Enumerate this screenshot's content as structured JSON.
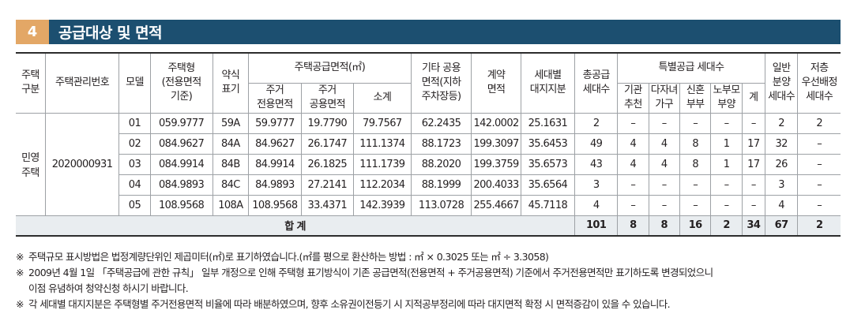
{
  "section": {
    "number": "4",
    "title": "공급대상 및 면적"
  },
  "headers": {
    "type": [
      "주택",
      "구분"
    ],
    "mgmt_no": [
      "주택관리번호"
    ],
    "model": [
      "모델"
    ],
    "house_type": [
      "주택형",
      "(전용면적",
      "기준)"
    ],
    "abbr": [
      "약식",
      "표기"
    ],
    "supply_area": "주택공급면적(㎡)",
    "exclusive": [
      "주거",
      "전용면적"
    ],
    "common": [
      "주거",
      "공용면적"
    ],
    "subtotal": [
      "소계"
    ],
    "other_common": [
      "기타 공용",
      "면적(지하",
      "주차장등)"
    ],
    "contract": [
      "계약",
      "면적"
    ],
    "land": [
      "세대별",
      "대지지분"
    ],
    "total_supply": [
      "총공급",
      "세대수"
    ],
    "special": "특별공급 세대수",
    "institution": [
      "기관",
      "추천"
    ],
    "multichild": [
      "다자녀",
      "가구"
    ],
    "newlywed": [
      "신혼",
      "부부"
    ],
    "elderly": [
      "노부모",
      "부양"
    ],
    "sp_total": [
      "계"
    ],
    "general": [
      "일반",
      "분양",
      "세대수"
    ],
    "lowest": [
      "저층",
      "우선배정",
      "세대수"
    ]
  },
  "type_label": [
    "민영",
    "주택"
  ],
  "mgmt_no": "2020000931",
  "rows": [
    {
      "model": "01",
      "house_type": "059.9777",
      "abbr": "59A",
      "exclusive": "59.9777",
      "common": "19.7790",
      "subtotal": "79.7567",
      "other": "62.2435",
      "contract": "142.0002",
      "land": "25.1631",
      "total": "2",
      "inst": "–",
      "multi": "–",
      "newly": "–",
      "elder": "–",
      "sp": "–",
      "general": "2",
      "lowest": "2"
    },
    {
      "model": "02",
      "house_type": "084.9627",
      "abbr": "84A",
      "exclusive": "84.9627",
      "common": "26.1747",
      "subtotal": "111.1374",
      "other": "88.1723",
      "contract": "199.3097",
      "land": "35.6453",
      "total": "49",
      "inst": "4",
      "multi": "4",
      "newly": "8",
      "elder": "1",
      "sp": "17",
      "general": "32",
      "lowest": "–"
    },
    {
      "model": "03",
      "house_type": "084.9914",
      "abbr": "84B",
      "exclusive": "84.9914",
      "common": "26.1825",
      "subtotal": "111.1739",
      "other": "88.2020",
      "contract": "199.3759",
      "land": "35.6573",
      "total": "43",
      "inst": "4",
      "multi": "4",
      "newly": "8",
      "elder": "1",
      "sp": "17",
      "general": "26",
      "lowest": "–"
    },
    {
      "model": "04",
      "house_type": "084.9893",
      "abbr": "84C",
      "exclusive": "84.9893",
      "common": "27.2141",
      "subtotal": "112.2034",
      "other": "88.1999",
      "contract": "200.4033",
      "land": "35.6564",
      "total": "3",
      "inst": "–",
      "multi": "–",
      "newly": "–",
      "elder": "–",
      "sp": "–",
      "general": "3",
      "lowest": "–"
    },
    {
      "model": "05",
      "house_type": "108.9568",
      "abbr": "108A",
      "exclusive": "108.9568",
      "common": "33.4371",
      "subtotal": "142.3939",
      "other": "113.0728",
      "contract": "255.4667",
      "land": "45.7118",
      "total": "4",
      "inst": "–",
      "multi": "–",
      "newly": "–",
      "elder": "–",
      "sp": "–",
      "general": "4",
      "lowest": "–"
    }
  ],
  "total_row": {
    "label": "합 계",
    "total": "101",
    "inst": "8",
    "multi": "8",
    "newly": "16",
    "elder": "2",
    "sp": "34",
    "general": "67",
    "lowest": "2"
  },
  "notes": [
    {
      "mark": "※",
      "text": "주택규모 표시방법은 법정계량단위인 제곱미터(㎡)로 표기하였습니다.(㎡를 평으로 환산하는 방법 : ㎡ × 0.3025 또는 ㎡ ÷ 3.3058)"
    },
    {
      "mark": "※",
      "text": "2009년 4월 1일 「주택공급에 관한 규칙」 일부 개정으로 인해 주택형 표기방식이 기존 공급면적(전용면적 + 주거공용면적) 기준에서 주거전용면적만 표기하도록 변경되었으니\n이점 유념하여 청약신청 하시기 바랍니다."
    },
    {
      "mark": "※",
      "text": "각 세대별 대지지분은 주택형별 주거전용면적 비율에 따라 배분하였으며, 향후 소유권이전등기 시 지적공부정리에 따라 대지면적 확정 시 면적증감이 있을 수 있습니다."
    }
  ]
}
